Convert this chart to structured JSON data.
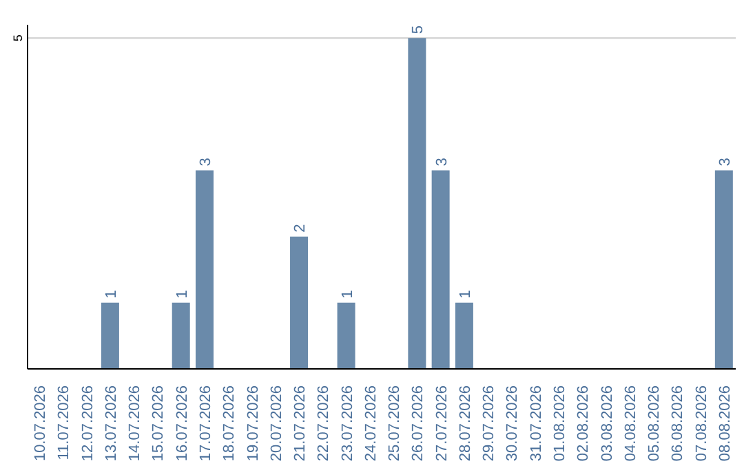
{
  "chart_data": {
    "type": "bar",
    "categories": [
      "10.07.2026",
      "11.07.2026",
      "12.07.2026",
      "13.07.2026",
      "14.07.2026",
      "15.07.2026",
      "16.07.2026",
      "17.07.2026",
      "18.07.2026",
      "19.07.2026",
      "20.07.2026",
      "21.07.2026",
      "22.07.2026",
      "23.07.2026",
      "24.07.2026",
      "25.07.2026",
      "26.07.2026",
      "27.07.2026",
      "28.07.2026",
      "29.07.2026",
      "30.07.2026",
      "31.07.2026",
      "01.08.2026",
      "02.08.2026",
      "03.08.2026",
      "04.08.2026",
      "05.08.2026",
      "06.08.2026",
      "07.08.2026",
      "08.08.2026"
    ],
    "values": [
      0,
      0,
      0,
      1,
      0,
      0,
      1,
      3,
      0,
      0,
      0,
      2,
      0,
      1,
      0,
      0,
      5,
      3,
      1,
      0,
      0,
      0,
      0,
      0,
      0,
      0,
      0,
      0,
      0,
      3
    ],
    "value_labels": [
      null,
      null,
      null,
      "1",
      null,
      null,
      "1",
      "3",
      null,
      null,
      null,
      "2",
      null,
      "1",
      null,
      null,
      "5",
      "3",
      "1",
      null,
      null,
      null,
      null,
      null,
      null,
      null,
      null,
      null,
      null,
      "3"
    ],
    "color": "#6a8aaa",
    "ylim": [
      0,
      5.2
    ],
    "yticks": [
      {
        "value": 0,
        "label": null
      },
      5
    ],
    "grid": "y"
  }
}
